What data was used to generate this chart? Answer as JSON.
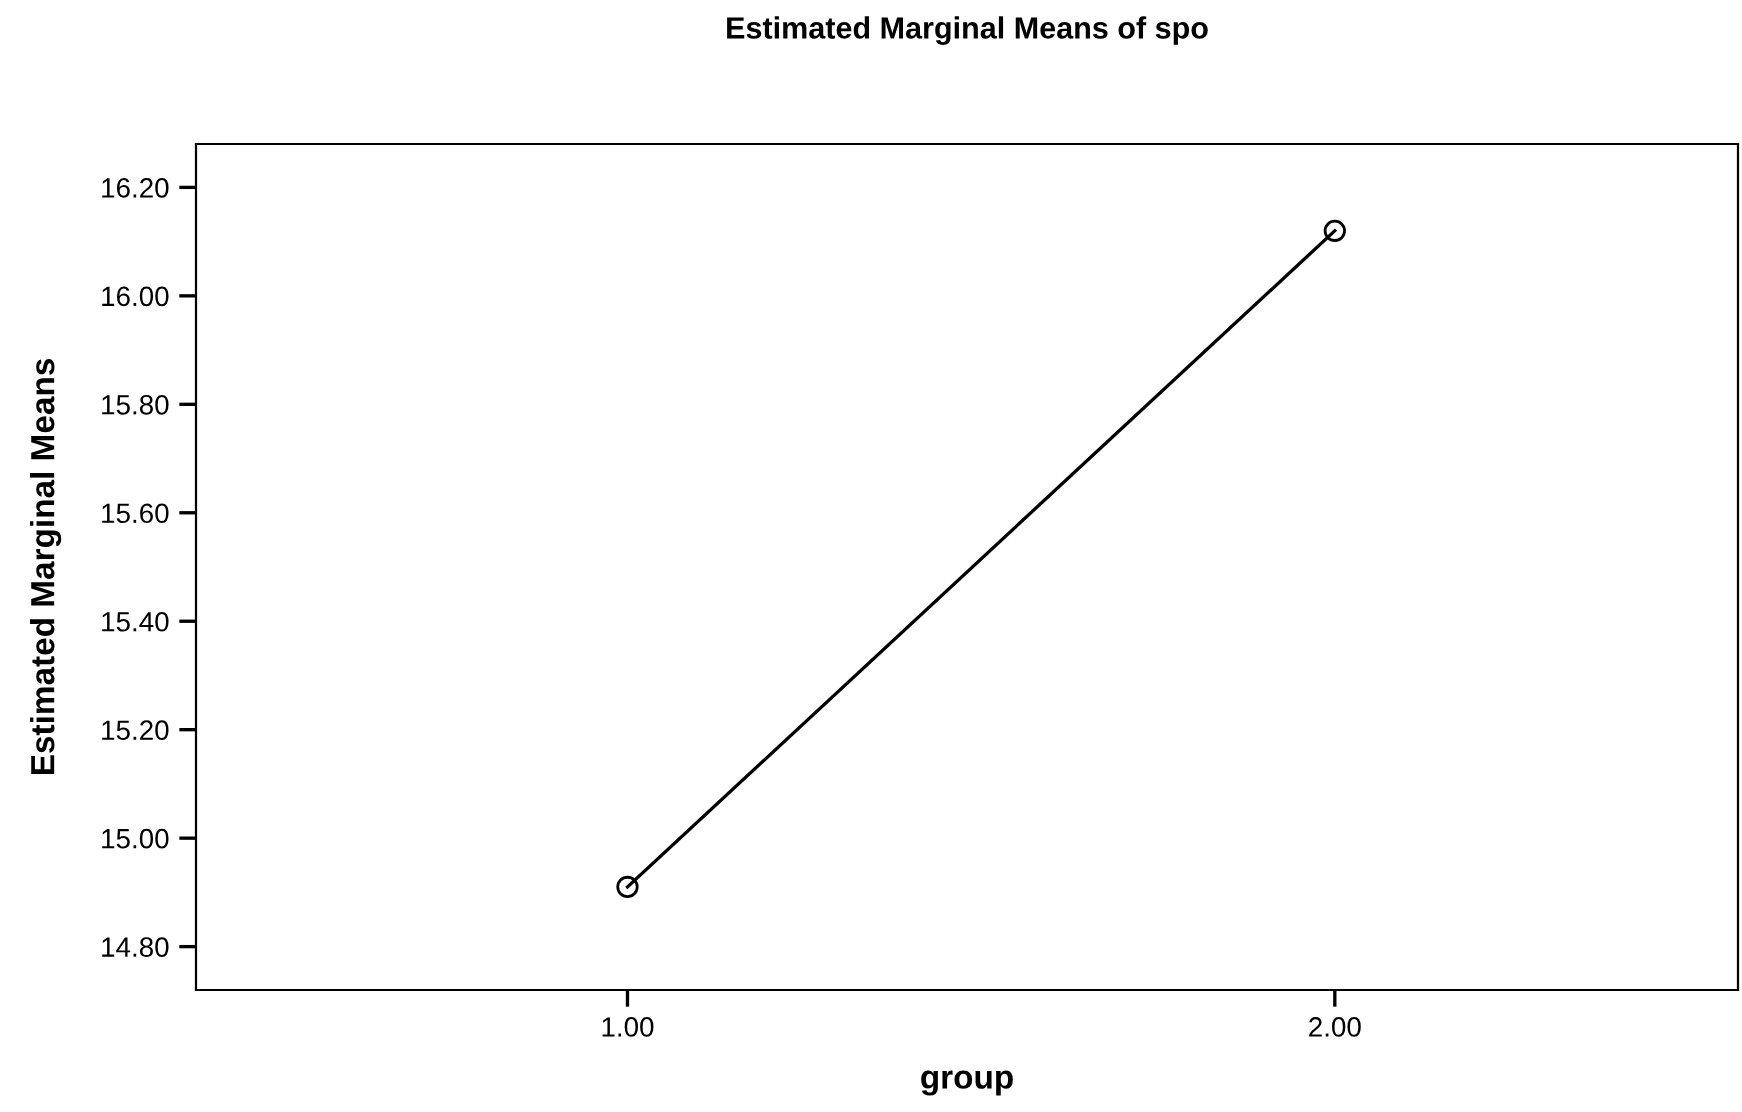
{
  "chart_data": {
    "type": "line",
    "title": "Estimated Marginal Means of spo",
    "xlabel": "group",
    "ylabel": "Estimated Marginal Means",
    "x": [
      1,
      2
    ],
    "series": [
      {
        "color": "#000000",
        "values": [
          14.91,
          16.12
        ]
      }
    ],
    "marker": "circle",
    "line_style": "solid",
    "xlim": [
      0.39,
      2.57
    ],
    "xticks": [
      {
        "value": 1,
        "label": "1.00"
      },
      {
        "value": 2,
        "label": "2.00"
      }
    ],
    "ylim": [
      14.72,
      16.28
    ],
    "yticks": [
      {
        "value": 14.8,
        "label": "14.80"
      },
      {
        "value": 15.0,
        "label": "15.00"
      },
      {
        "value": 15.2,
        "label": "15.20"
      },
      {
        "value": 15.4,
        "label": "15.40"
      },
      {
        "value": 15.6,
        "label": "15.60"
      },
      {
        "value": 15.8,
        "label": "15.80"
      },
      {
        "value": 16.0,
        "label": "16.00"
      },
      {
        "value": 16.2,
        "label": "16.20"
      }
    ],
    "grid": false,
    "legend": false
  }
}
